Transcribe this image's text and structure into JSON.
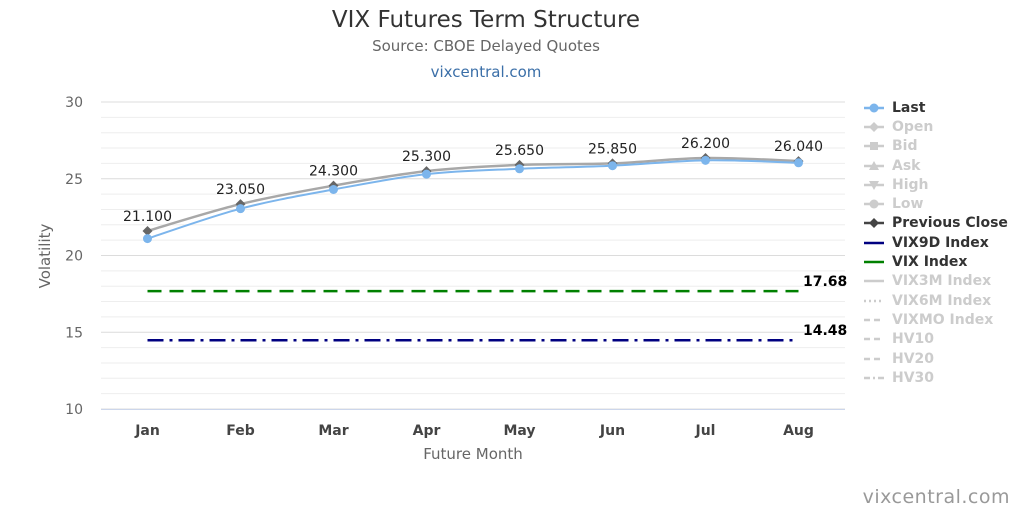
{
  "header": {
    "title": "VIX Futures Term Structure",
    "subtitle": "Source: CBOE Delayed Quotes",
    "link": "vixcentral.com"
  },
  "credit": "vixcentral.com",
  "colors": {
    "last": "#7cb5ec",
    "previous_close": "#a8a8a8",
    "vix9d": "#000080",
    "vix": "#008000",
    "grid": "#e6e6e6",
    "legend_active": "#333333",
    "legend_inactive": "#cccccc"
  },
  "chart_data": {
    "type": "line",
    "title": "VIX Futures Term Structure",
    "subtitle": "Source: CBOE Delayed Quotes",
    "xlabel": "Future Month",
    "ylabel": "Volatility",
    "categories": [
      "Jan",
      "Feb",
      "Mar",
      "Apr",
      "May",
      "Jun",
      "Jul",
      "Aug"
    ],
    "ylim": [
      10,
      30
    ],
    "yticks": [
      10,
      15,
      20,
      25,
      30
    ],
    "grid": true,
    "legend_position": "right",
    "series": [
      {
        "name": "Last",
        "values": [
          21.1,
          23.05,
          24.3,
          25.3,
          25.65,
          25.85,
          26.2,
          26.04
        ],
        "data_labels": [
          "21.100",
          "23.050",
          "24.300",
          "25.300",
          "25.650",
          "25.850",
          "26.200",
          "26.040"
        ]
      },
      {
        "name": "Previous Close",
        "values": [
          21.6,
          23.35,
          24.55,
          25.5,
          25.9,
          26.0,
          26.35,
          26.15
        ]
      }
    ],
    "reference_lines": [
      {
        "name": "VIX Index",
        "value": 17.68,
        "label": "17.68",
        "style": "dashed"
      },
      {
        "name": "VIX9D Index",
        "value": 14.48,
        "label": "14.48",
        "style": "dashdot"
      }
    ],
    "legend": [
      {
        "name": "Last",
        "active": true,
        "symbol": "circle-line"
      },
      {
        "name": "Open",
        "active": false,
        "symbol": "diamond-line"
      },
      {
        "name": "Bid",
        "active": false,
        "symbol": "square-line"
      },
      {
        "name": "Ask",
        "active": false,
        "symbol": "triangle-line"
      },
      {
        "name": "High",
        "active": false,
        "symbol": "triangle-down-line"
      },
      {
        "name": "Low",
        "active": false,
        "symbol": "circle-line"
      },
      {
        "name": "Previous Close",
        "active": true,
        "symbol": "diamond-line"
      },
      {
        "name": "VIX9D Index",
        "active": true,
        "symbol": "solid"
      },
      {
        "name": "VIX Index",
        "active": true,
        "symbol": "solid"
      },
      {
        "name": "VIX3M Index",
        "active": false,
        "symbol": "solid"
      },
      {
        "name": "VIX6M Index",
        "active": false,
        "symbol": "dotted"
      },
      {
        "name": "VIXMO Index",
        "active": false,
        "symbol": "dashed"
      },
      {
        "name": "HV10",
        "active": false,
        "symbol": "dashed"
      },
      {
        "name": "HV20",
        "active": false,
        "symbol": "dashed"
      },
      {
        "name": "HV30",
        "active": false,
        "symbol": "dashdot"
      }
    ]
  }
}
